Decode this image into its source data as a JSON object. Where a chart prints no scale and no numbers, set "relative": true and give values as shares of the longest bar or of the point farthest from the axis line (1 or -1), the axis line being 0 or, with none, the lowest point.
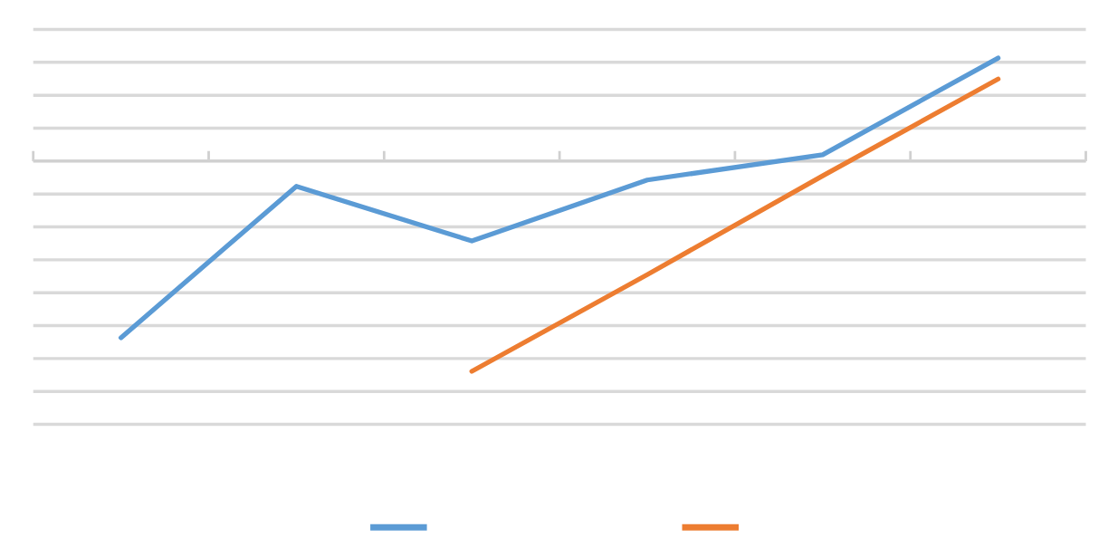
{
  "chart_data": {
    "type": "line",
    "relative": true,
    "categories": [
      null,
      null,
      null,
      null,
      null,
      null
    ],
    "series": [
      {
        "color": "#5b9bd5",
        "values": [
          -0.84,
          -0.12,
          -0.38,
          -0.09,
          0.03,
          0.49
        ]
      },
      {
        "color": "#ed7d31",
        "values": [
          null,
          null,
          -1,
          -0.54,
          -0.07,
          0.39
        ]
      }
    ],
    "grid": "y",
    "marker": "none",
    "line_style": "solid"
  }
}
